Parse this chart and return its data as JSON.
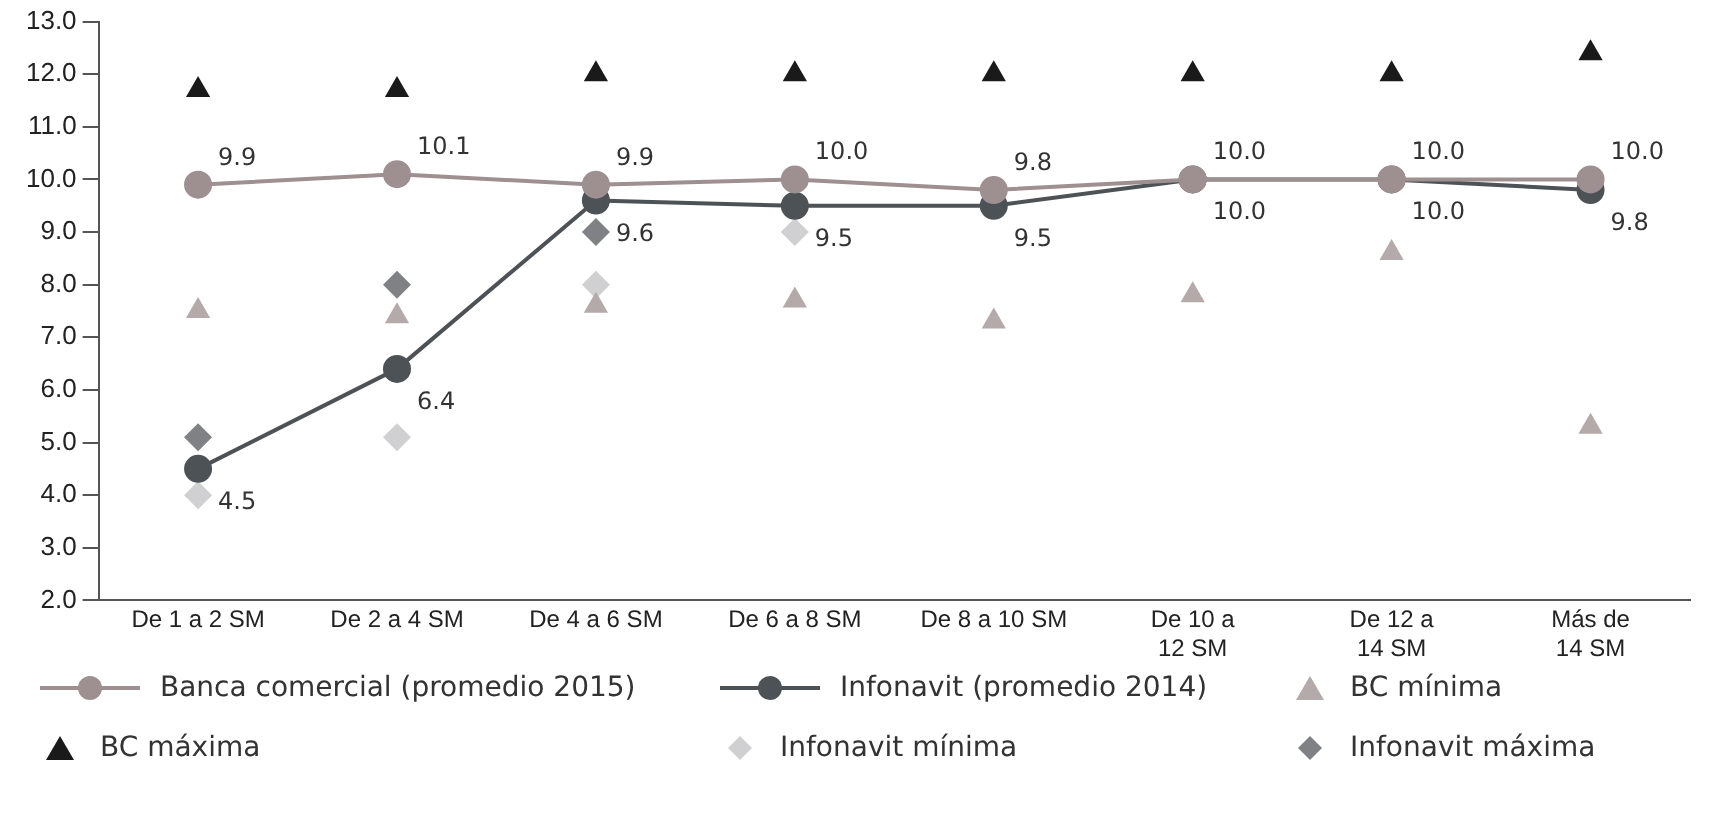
{
  "chart_data": {
    "type": "line",
    "categories": [
      "De 1 a 2 SM",
      "De 2 a 4 SM",
      "De 4 a 6 SM",
      "De 6 a 8 SM",
      "De 8 a 10 SM",
      "De 10 a\n12 SM",
      "De 12 a\n14 SM",
      "Más de\n14 SM"
    ],
    "ylim": [
      2,
      13
    ],
    "yticks": [
      {
        "value": 2,
        "label": "2.0"
      },
      {
        "value": 3,
        "label": "3.0"
      },
      {
        "value": 4,
        "label": "4.0"
      },
      {
        "value": 5,
        "label": "5.0"
      },
      {
        "value": 6,
        "label": "6.0"
      },
      {
        "value": 7,
        "label": "7.0"
      },
      {
        "value": 8,
        "label": "8.0"
      },
      {
        "value": 9,
        "label": "9.0"
      },
      {
        "value": 10,
        "label": "10.0"
      },
      {
        "value": 11,
        "label": "11.0"
      },
      {
        "value": 12,
        "label": "12.0"
      },
      {
        "value": 13,
        "label": "13.0"
      }
    ],
    "grid": false,
    "legend": "bottom",
    "series": [
      {
        "name": "Banca comercial (promedio 2015)",
        "marker": "circle",
        "color": "#9e8f91",
        "values": [
          9.9,
          10.1,
          9.9,
          10.0,
          9.8,
          10.0,
          10.0,
          10.0
        ],
        "value_labels": [
          "9.9",
          "10.1",
          "9.9",
          "10.0",
          "9.8",
          "10.0",
          "10.0",
          "10.0"
        ]
      },
      {
        "name": "Infonavit (promedio 2014)",
        "marker": "circle",
        "color": "#4d5256",
        "values": [
          4.5,
          6.4,
          9.6,
          9.5,
          9.5,
          10.0,
          10.0,
          9.8
        ],
        "value_labels": [
          "4.5",
          "6.4",
          "9.6",
          "9.5",
          "9.5",
          "10.0",
          "10.0",
          "9.8"
        ]
      },
      {
        "name": "BC mínima",
        "type": "scatter",
        "marker": "triangle",
        "color": "#b3aaa9",
        "values": [
          7.5,
          7.4,
          7.6,
          7.7,
          7.3,
          7.8,
          8.6,
          5.3
        ]
      },
      {
        "name": "BC máxima",
        "type": "scatter",
        "marker": "triangle",
        "color": "#1a1a1a",
        "values": [
          11.7,
          11.7,
          12.0,
          12.0,
          12.0,
          12.0,
          12.0,
          12.4
        ]
      },
      {
        "name": "Infonavit mínima",
        "type": "scatter",
        "marker": "diamond",
        "color": "#d0d0d2",
        "values": [
          4.0,
          5.1,
          8.0,
          9.0,
          null,
          null,
          null,
          null
        ]
      },
      {
        "name": "Infonavit máxima",
        "type": "scatter",
        "marker": "diamond",
        "color": "#7f8184",
        "values": [
          5.1,
          8.0,
          9.0,
          null,
          null,
          null,
          null,
          null
        ]
      }
    ]
  }
}
